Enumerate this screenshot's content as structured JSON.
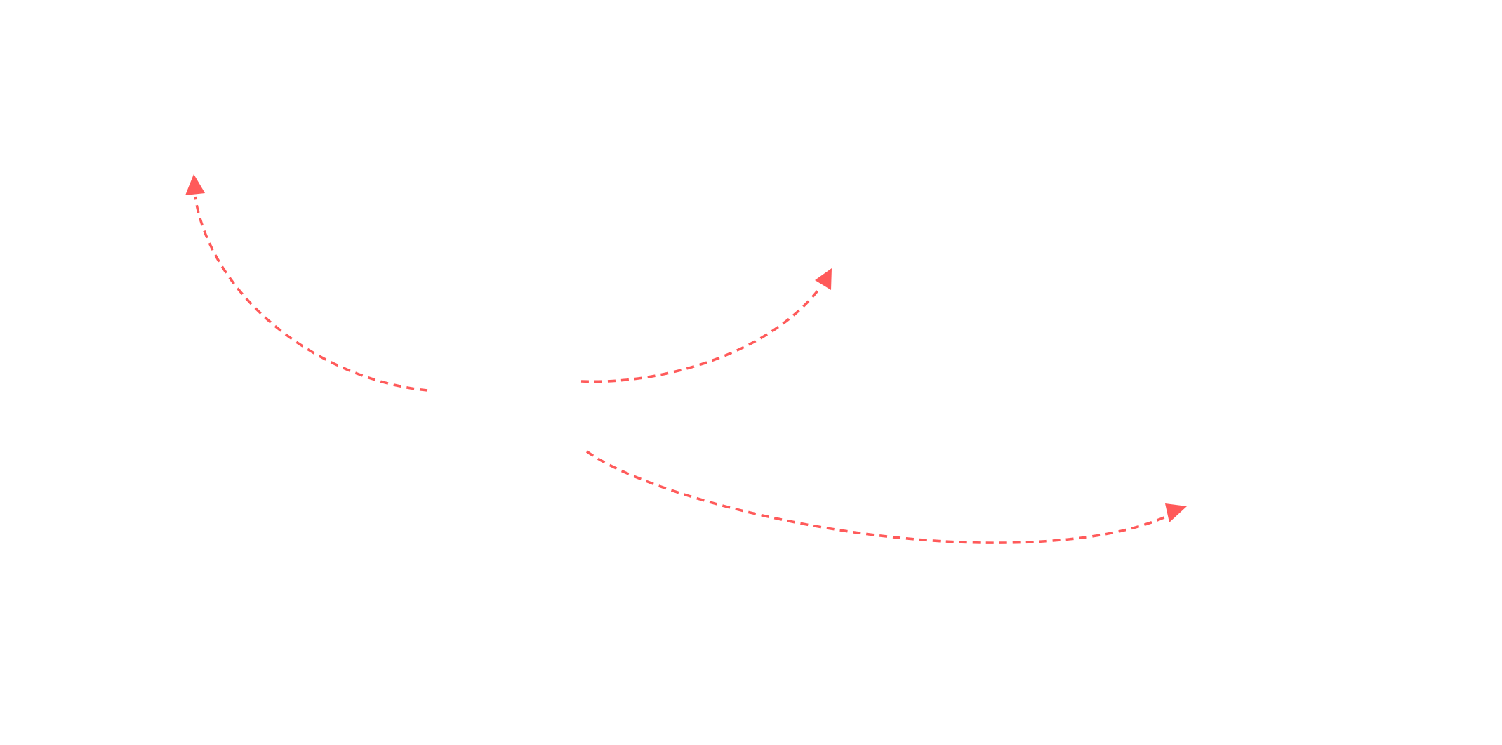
{
  "diagram": {
    "background": "#ffffff",
    "arrow_color": "#ff5a5a",
    "line_style": "dashed",
    "arrows": [
      {
        "id": "arrow-up-left",
        "direction": "up-left"
      },
      {
        "id": "arrow-up-right",
        "direction": "up-right"
      },
      {
        "id": "arrow-right",
        "direction": "right"
      }
    ]
  }
}
